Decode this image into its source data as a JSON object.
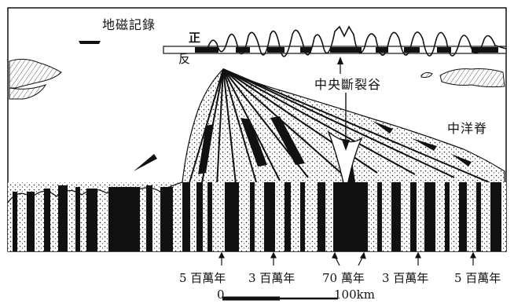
{
  "labels": {
    "magnetic_record": "地磁記錄",
    "normal": "正",
    "reversed": "反",
    "central_rift": "中央斷裂谷",
    "mid_ocean_ridge": "中洋脊"
  },
  "ages": [
    "5 百萬年",
    "3 百萬年",
    "70 萬年",
    "3 百萬年",
    "5 百萬年"
  ],
  "scale": {
    "start": "0",
    "end": "100km"
  },
  "colors": {
    "ink": "#111111",
    "paper": "#ffffff"
  }
}
